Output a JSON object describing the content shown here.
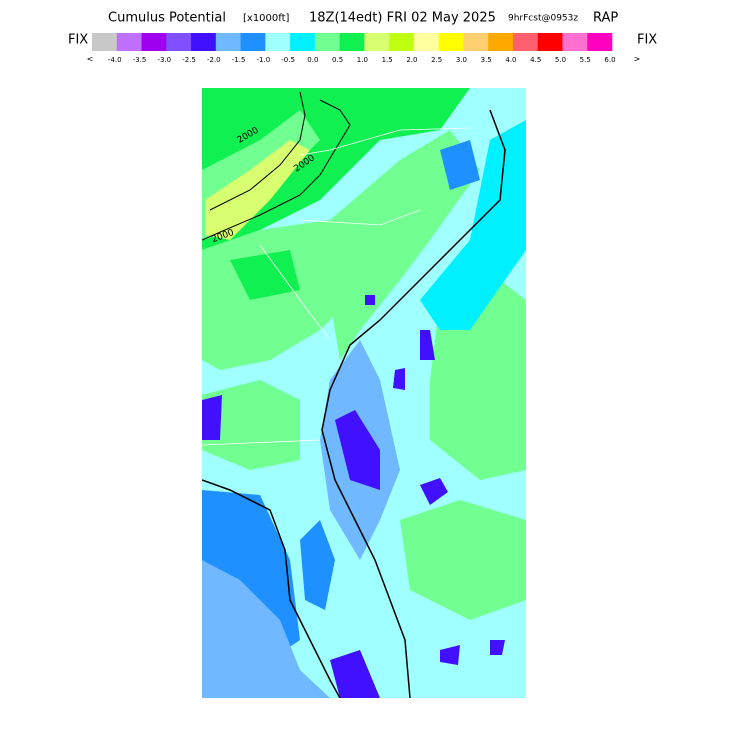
{
  "header": {
    "title": "Cumulus Potential",
    "units": "[x1000ft]",
    "valid_time": "18Z(14edt) FRI 02 May 2025",
    "forecast": "9hrFcst@0953z",
    "model": "RAP"
  },
  "legend": {
    "left_label": "FIX",
    "right_label": "FIX",
    "left_arrow": "<",
    "right_arrow": ">",
    "colors": [
      "#c8c8c8",
      "#c070ff",
      "#a000f0",
      "#8050ff",
      "#4010ff",
      "#70b8ff",
      "#1e90ff",
      "#a0ffff",
      "#00f0ff",
      "#70ff90",
      "#10f050",
      "#d8ff70",
      "#c0ff10",
      "#ffffa0",
      "#ffff00",
      "#ffd070",
      "#ffa800",
      "#ff6070",
      "#ff0000",
      "#ff70d0",
      "#ff00c0"
    ],
    "labels": [
      "-4.0",
      "-3.5",
      "-3.0",
      "-2.5",
      "-2.0",
      "-1.5",
      "-1.0",
      "-0.5",
      "0.0",
      "0.5",
      "1.0",
      "1.5",
      "2.0",
      "2.5",
      "3.0",
      "3.5",
      "4.0",
      "4.5",
      "5.0",
      "5.5",
      "6.0"
    ]
  },
  "map": {
    "contour_labels": [
      "2000",
      "2000",
      "2000"
    ]
  }
}
